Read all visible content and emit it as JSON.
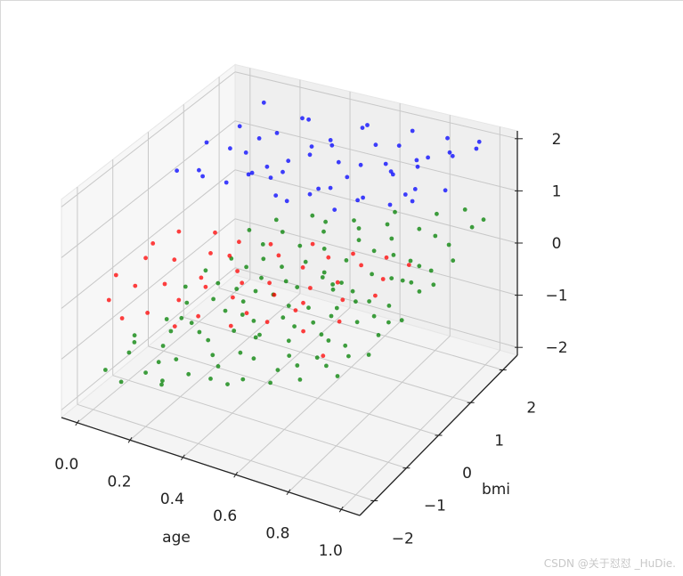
{
  "chart_data": {
    "type": "scatter",
    "projection": "3d",
    "title": "",
    "xlabel": "age",
    "ylabel": "bmi",
    "zlabel": "",
    "xlim": [
      -0.06,
      1.07
    ],
    "ylim": [
      -2.45,
      2.45
    ],
    "zlim": [
      -2.15,
      2.15
    ],
    "xticks": [
      "0.0",
      "0.2",
      "0.4",
      "0.6",
      "0.8",
      "1.0"
    ],
    "xtick_values": [
      0,
      0.2,
      0.4,
      0.6,
      0.8,
      1.0
    ],
    "yticks": [
      "−2",
      "−1",
      "0",
      "1",
      "2"
    ],
    "ytick_values": [
      -2,
      -1,
      0,
      1,
      2
    ],
    "zticks": [
      "−2",
      "−1",
      "0",
      "1",
      "2"
    ],
    "ztick_values": [
      -2,
      -1,
      0,
      1,
      2
    ],
    "grid": true,
    "series": [
      {
        "name": "green",
        "color": "#008000",
        "points": [
          [
            0.02,
            -1.8,
            -1.45
          ],
          [
            0.05,
            -1.2,
            -1.2
          ],
          [
            0.08,
            -0.5,
            -1.1
          ],
          [
            0.03,
            0.4,
            -1.05
          ],
          [
            0.1,
            1.2,
            -0.85
          ],
          [
            0.12,
            -2.1,
            -1.35
          ],
          [
            0.15,
            -0.9,
            -1.0
          ],
          [
            0.18,
            0.1,
            -0.9
          ],
          [
            0.2,
            0.9,
            -0.7
          ],
          [
            0.22,
            1.8,
            -0.5
          ],
          [
            0.06,
            2.0,
            -0.8
          ],
          [
            0.25,
            -1.5,
            -1.05
          ],
          [
            0.28,
            -0.3,
            -0.75
          ],
          [
            0.3,
            0.6,
            -0.6
          ],
          [
            0.33,
            1.5,
            -0.45
          ],
          [
            0.35,
            -1.9,
            -0.95
          ],
          [
            0.38,
            -0.8,
            -0.7
          ],
          [
            0.4,
            0.2,
            -0.55
          ],
          [
            0.42,
            1.0,
            -0.35
          ],
          [
            0.45,
            2.2,
            -0.2
          ],
          [
            0.47,
            -1.3,
            -0.7
          ],
          [
            0.5,
            -0.1,
            -0.45
          ],
          [
            0.52,
            0.8,
            -0.3
          ],
          [
            0.55,
            1.6,
            -0.1
          ],
          [
            0.57,
            -2.0,
            -0.65
          ],
          [
            0.6,
            -0.7,
            -0.35
          ],
          [
            0.62,
            0.3,
            -0.2
          ],
          [
            0.65,
            1.3,
            0.0
          ],
          [
            0.67,
            -1.4,
            -0.4
          ],
          [
            0.7,
            -0.2,
            -0.15
          ],
          [
            0.72,
            0.7,
            0.0
          ],
          [
            0.75,
            1.9,
            0.2
          ],
          [
            0.77,
            -1.0,
            -0.2
          ],
          [
            0.8,
            0.0,
            0.0
          ],
          [
            0.82,
            1.1,
            0.15
          ],
          [
            0.85,
            -1.7,
            -0.15
          ],
          [
            0.87,
            -0.4,
            0.05
          ],
          [
            0.9,
            0.5,
            0.2
          ],
          [
            0.92,
            1.5,
            0.35
          ],
          [
            0.95,
            -0.9,
            0.1
          ],
          [
            0.97,
            0.2,
            0.3
          ],
          [
            1.0,
            1.0,
            0.45
          ],
          [
            0.98,
            2.1,
            0.55
          ],
          [
            0.93,
            -2.0,
            -0.05
          ],
          [
            0.01,
            -0.9,
            -1.3
          ],
          [
            0.04,
            0.9,
            -1.0
          ],
          [
            0.07,
            -1.5,
            -1.2
          ],
          [
            0.09,
            0.0,
            -1.05
          ],
          [
            0.11,
            -0.3,
            -1.15
          ],
          [
            0.13,
            0.6,
            -0.95
          ],
          [
            0.16,
            -1.2,
            -1.1
          ],
          [
            0.17,
            1.6,
            -0.7
          ],
          [
            0.19,
            -0.6,
            -0.95
          ],
          [
            0.21,
            -1.7,
            -1.05
          ],
          [
            0.23,
            0.4,
            -0.8
          ],
          [
            0.24,
            1.1,
            -0.6
          ],
          [
            0.26,
            -0.9,
            -0.85
          ],
          [
            0.27,
            2.3,
            -0.4
          ],
          [
            0.29,
            -2.2,
            -1.0
          ],
          [
            0.31,
            0.0,
            -0.7
          ],
          [
            0.32,
            -1.1,
            -0.8
          ],
          [
            0.34,
            0.9,
            -0.5
          ],
          [
            0.36,
            -0.4,
            -0.65
          ],
          [
            0.37,
            1.9,
            -0.35
          ],
          [
            0.39,
            -1.5,
            -0.75
          ],
          [
            0.41,
            0.5,
            -0.45
          ],
          [
            0.43,
            -0.6,
            -0.55
          ],
          [
            0.44,
            1.4,
            -0.3
          ],
          [
            0.46,
            -2.1,
            -0.75
          ],
          [
            0.48,
            0.3,
            -0.35
          ],
          [
            0.49,
            -1.0,
            -0.55
          ],
          [
            0.51,
            1.9,
            -0.1
          ],
          [
            0.53,
            -0.5,
            -0.4
          ],
          [
            0.54,
            0.6,
            -0.25
          ],
          [
            0.56,
            -1.6,
            -0.5
          ],
          [
            0.58,
            1.0,
            -0.1
          ],
          [
            0.59,
            -0.2,
            -0.3
          ],
          [
            0.61,
            2.0,
            0.05
          ],
          [
            0.63,
            -1.1,
            -0.35
          ],
          [
            0.64,
            0.4,
            -0.1
          ],
          [
            0.66,
            -0.6,
            -0.25
          ],
          [
            0.68,
            1.6,
            0.1
          ],
          [
            0.69,
            -1.9,
            -0.35
          ],
          [
            0.71,
            0.2,
            -0.05
          ],
          [
            0.73,
            -0.9,
            -0.2
          ],
          [
            0.74,
            1.2,
            0.1
          ],
          [
            0.76,
            -0.1,
            0.0
          ],
          [
            0.78,
            2.2,
            0.35
          ],
          [
            0.79,
            -1.5,
            -0.2
          ],
          [
            0.81,
            0.6,
            0.1
          ],
          [
            0.83,
            -0.6,
            0.0
          ],
          [
            0.84,
            1.7,
            0.3
          ],
          [
            0.86,
            -1.2,
            -0.05
          ],
          [
            0.88,
            0.9,
            0.25
          ],
          [
            0.89,
            -0.1,
            0.1
          ],
          [
            0.91,
            -1.5,
            0.0
          ],
          [
            0.94,
            0.8,
            0.3
          ],
          [
            0.96,
            1.9,
            0.5
          ],
          [
            0.99,
            -0.5,
            0.2
          ],
          [
            1.0,
            0.4,
            0.35
          ],
          [
            0.14,
            2.2,
            -0.6
          ],
          [
            0.3,
            -2.3,
            -1.0
          ],
          [
            0.45,
            -1.8,
            -0.7
          ],
          [
            0.6,
            2.3,
            0.1
          ],
          [
            0.7,
            -2.2,
            -0.4
          ],
          [
            0.88,
            2.3,
            0.5
          ],
          [
            0.35,
            2.1,
            -0.3
          ],
          [
            0.55,
            -2.3,
            -0.6
          ],
          [
            0.2,
            -2.0,
            -1.1
          ],
          [
            0.8,
            -2.1,
            -0.25
          ],
          [
            0.4,
            -0.2,
            -1.1
          ],
          [
            0.6,
            0.4,
            -0.8
          ],
          [
            0.75,
            1.4,
            -0.5
          ],
          [
            0.25,
            0.8,
            -1.05
          ],
          [
            0.5,
            1.2,
            -0.8
          ],
          [
            0.9,
            -0.8,
            -0.4
          ],
          [
            0.65,
            -1.0,
            -0.85
          ],
          [
            0.85,
            0.2,
            -0.45
          ]
        ]
      },
      {
        "name": "red",
        "color": "#ff0000",
        "points": [
          [
            0.02,
            -1.5,
            0.25
          ],
          [
            0.04,
            -0.6,
            0.4
          ],
          [
            0.06,
            -2.0,
            0.1
          ],
          [
            0.08,
            -1.1,
            0.45
          ],
          [
            0.1,
            -0.3,
            0.55
          ],
          [
            0.12,
            -1.7,
            0.3
          ],
          [
            0.15,
            -0.8,
            0.35
          ],
          [
            0.18,
            -1.3,
            0.2
          ],
          [
            0.2,
            0.0,
            0.5
          ],
          [
            0.22,
            -2.1,
            0.15
          ],
          [
            0.25,
            -0.5,
            0.45
          ],
          [
            0.28,
            -1.0,
            0.3
          ],
          [
            0.3,
            -1.8,
            0.35
          ],
          [
            0.32,
            -0.2,
            0.6
          ],
          [
            0.35,
            -1.4,
            0.45
          ],
          [
            0.38,
            -0.7,
            0.4
          ],
          [
            0.4,
            -2.0,
            0.3
          ],
          [
            0.43,
            -0.1,
            0.65
          ],
          [
            0.45,
            -1.1,
            0.5
          ],
          [
            0.48,
            -1.6,
            0.55
          ],
          [
            0.5,
            -0.4,
            0.7
          ],
          [
            0.53,
            -0.9,
            0.5
          ],
          [
            0.55,
            -2.2,
            0.45
          ],
          [
            0.58,
            0.0,
            0.8
          ],
          [
            0.6,
            -1.3,
            0.6
          ],
          [
            0.62,
            -0.6,
            0.75
          ],
          [
            0.65,
            -1.9,
            0.5
          ],
          [
            0.68,
            -0.3,
            0.85
          ],
          [
            0.7,
            -1.0,
            0.7
          ],
          [
            0.72,
            -1.6,
            0.65
          ],
          [
            0.75,
            -0.1,
            0.9
          ],
          [
            0.78,
            -0.8,
            0.8
          ],
          [
            0.8,
            -2.0,
            0.6
          ],
          [
            0.82,
            -0.4,
            0.95
          ],
          [
            0.85,
            -1.2,
            0.8
          ],
          [
            0.88,
            -0.1,
            1.0
          ],
          [
            0.9,
            -1.7,
            0.75
          ],
          [
            0.93,
            -0.6,
            0.95
          ],
          [
            0.95,
            -1.0,
            0.9
          ],
          [
            0.98,
            -0.2,
            1.05
          ],
          [
            0.15,
            -2.3,
            0.05
          ],
          [
            0.35,
            -2.3,
            0.2
          ],
          [
            0.52,
            -1.5,
            0.25
          ],
          [
            0.66,
            -0.9,
            0.3
          ],
          [
            0.9,
            -2.2,
            0.4
          ],
          [
            0.27,
            -0.1,
            0.2
          ]
        ]
      },
      {
        "name": "blue",
        "color": "#0000ff",
        "points": [
          [
            0.01,
            0.3,
            1.3
          ],
          [
            0.03,
            1.0,
            1.5
          ],
          [
            0.05,
            1.8,
            1.4
          ],
          [
            0.07,
            0.6,
            1.1
          ],
          [
            0.09,
            2.2,
            1.7
          ],
          [
            0.11,
            0.2,
            1.5
          ],
          [
            0.13,
            1.4,
            1.2
          ],
          [
            0.15,
            0.8,
            1.65
          ],
          [
            0.17,
            2.0,
            1.3
          ],
          [
            0.19,
            0.4,
            1.25
          ],
          [
            0.21,
            1.2,
            1.7
          ],
          [
            0.23,
            2.3,
            1.5
          ],
          [
            0.25,
            0.7,
            1.35
          ],
          [
            0.27,
            1.6,
            1.1
          ],
          [
            0.29,
            0.3,
            1.6
          ],
          [
            0.31,
            1.9,
            1.8
          ],
          [
            0.33,
            1.0,
            1.3
          ],
          [
            0.35,
            0.5,
            1.5
          ],
          [
            0.37,
            2.1,
            1.35
          ],
          [
            0.39,
            1.4,
            1.65
          ],
          [
            0.41,
            0.2,
            1.4
          ],
          [
            0.43,
            1.7,
            1.55
          ],
          [
            0.45,
            0.9,
            1.85
          ],
          [
            0.47,
            2.3,
            1.6
          ],
          [
            0.49,
            0.6,
            1.3
          ],
          [
            0.51,
            1.3,
            1.55
          ],
          [
            0.53,
            2.0,
            1.9
          ],
          [
            0.55,
            0.4,
            1.6
          ],
          [
            0.57,
            1.1,
            1.45
          ],
          [
            0.59,
            1.8,
            1.7
          ],
          [
            0.61,
            0.3,
            1.75
          ],
          [
            0.63,
            2.2,
            1.5
          ],
          [
            0.65,
            0.9,
            1.9
          ],
          [
            0.67,
            1.5,
            1.6
          ],
          [
            0.69,
            0.5,
            1.5
          ],
          [
            0.71,
            2.0,
            2.0
          ],
          [
            0.73,
            1.2,
            1.7
          ],
          [
            0.75,
            0.2,
            1.8
          ],
          [
            0.77,
            1.7,
            1.55
          ],
          [
            0.79,
            0.8,
            1.95
          ],
          [
            0.81,
            2.3,
            1.8
          ],
          [
            0.83,
            0.4,
            1.65
          ],
          [
            0.85,
            1.4,
            2.0
          ],
          [
            0.87,
            2.0,
            1.7
          ],
          [
            0.89,
            0.7,
            1.85
          ],
          [
            0.91,
            1.6,
            2.05
          ],
          [
            0.93,
            0.3,
            1.9
          ],
          [
            0.95,
            2.2,
            1.95
          ],
          [
            0.97,
            1.0,
            1.75
          ],
          [
            0.99,
            1.8,
            2.1
          ],
          [
            0.4,
            0.6,
            1.05
          ],
          [
            0.6,
            0.5,
            1.2
          ],
          [
            0.8,
            1.1,
            1.4
          ],
          [
            0.2,
            1.5,
            0.95
          ],
          [
            0.7,
            2.2,
            1.3
          ]
        ]
      }
    ]
  },
  "watermark": "CSDN @关于怼怼 _HuDie."
}
